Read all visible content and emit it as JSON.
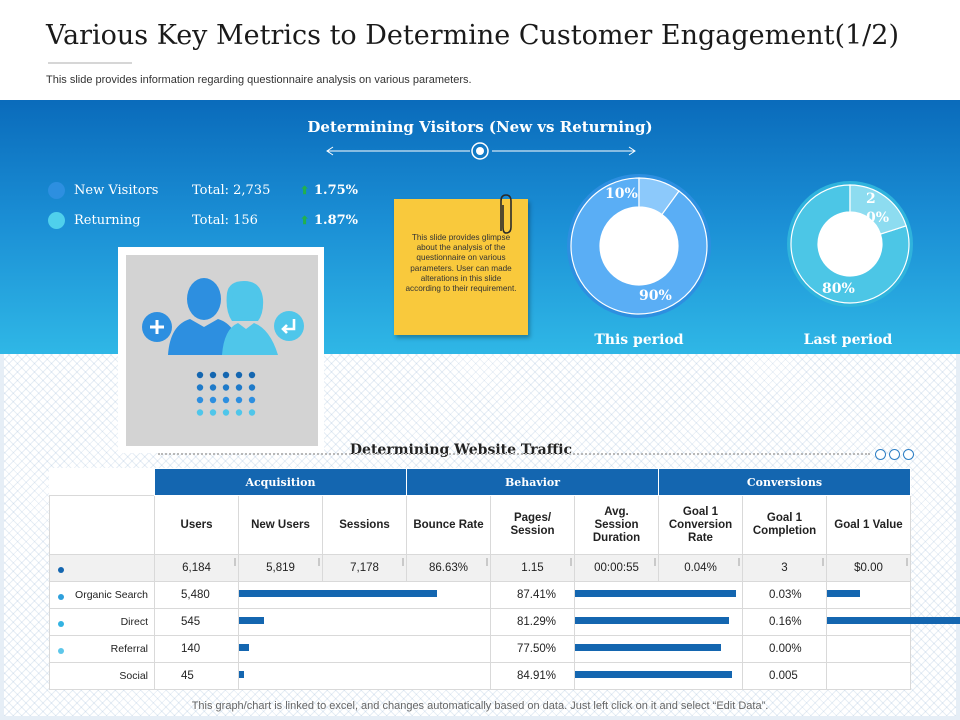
{
  "header": {
    "title": "Various Key Metrics to Determine Customer Engagement(1/2)",
    "subtitle": "This slide provides information regarding questionnaire analysis on various parameters."
  },
  "visitors": {
    "title": "Determining Visitors (New vs Returning)",
    "legend": [
      {
        "label": "New Visitors",
        "total": "Total: 2,735",
        "change": "1.75%",
        "color": "#2d8fe0"
      },
      {
        "label": "Returning",
        "total": "Total: 156",
        "change": "1.87%",
        "color": "#4fd0ec"
      }
    ],
    "note": "This slide provides glimpse about the analysis of the questionnaire on various parameters. User can made alterations in this slide according to their requirement.",
    "this_period": {
      "label": "This period",
      "small_pct": "10%",
      "large_pct": "90%",
      "small_value": 10,
      "large_value": 90
    },
    "last_period": {
      "label": "Last period",
      "small_pct": "20%",
      "large_pct": "80%",
      "small_value": 20,
      "large_value": 80
    }
  },
  "traffic": {
    "title": "Determining Website Traffic",
    "groups": [
      "Acquisition",
      "Behavior",
      "Conversions"
    ],
    "columns": [
      "Users",
      "New Users",
      "Sessions",
      "Bounce Rate",
      "Pages/ Session",
      "Avg. Session Duration",
      "Goal 1 Conversion Rate",
      "Goal 1 Completion",
      "Goal 1 Value"
    ],
    "total": {
      "users": "6,184",
      "new_users": "5,819",
      "sessions": "7,178",
      "bounce_rate": "86.63%",
      "pages_session": "1.15",
      "avg_duration": "00:00:55",
      "conv_rate": "0.04%",
      "completion": "3",
      "value": "$0.00"
    },
    "rows": [
      {
        "label": "Organic Search",
        "users": "5,480",
        "bounce_rate": "87.41%",
        "conv_rate": "0.03%",
        "new_users_bar": 0.8,
        "behavior_bar": 0.98,
        "conversions_bar": 0.2,
        "dot_color": "#2ea0dc"
      },
      {
        "label": "Direct",
        "users": "545",
        "bounce_rate": "81.29%",
        "conv_rate": "0.16%",
        "new_users_bar": 0.1,
        "behavior_bar": 0.94,
        "conversions_bar": 0.98,
        "dot_color": "#34b3e2"
      },
      {
        "label": "Referral",
        "users": "140",
        "bounce_rate": "77.50%",
        "conv_rate": "0.00%",
        "new_users_bar": 0.04,
        "behavior_bar": 0.89,
        "conversions_bar": 0,
        "dot_color": "#5ec7ea"
      },
      {
        "label": "Social",
        "users": "45",
        "bounce_rate": "84.91%",
        "conv_rate": "0.005",
        "new_users_bar": 0.02,
        "behavior_bar": 0.96,
        "conversions_bar": 0,
        "dot_color": "#ffffff"
      }
    ]
  },
  "footer": "This graph/chart is linked to excel, and changes automatically based on data. Just left click on it and select “Edit Data”."
}
